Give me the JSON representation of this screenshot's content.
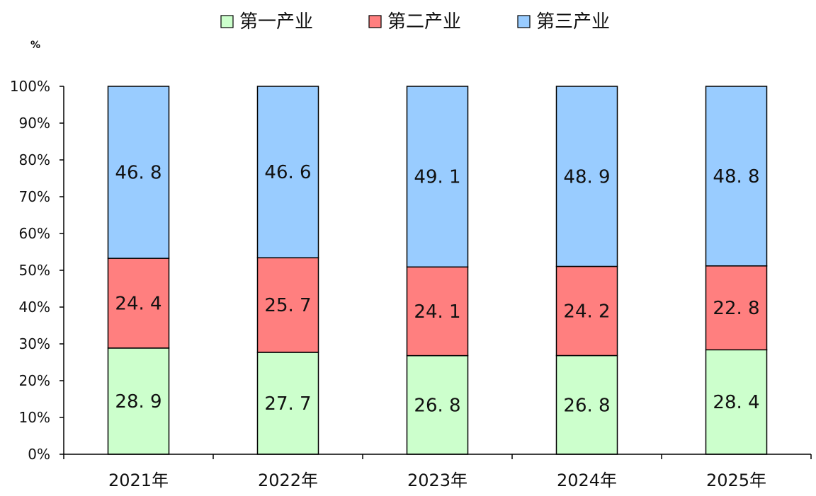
{
  "chart_data": {
    "type": "bar",
    "stacked": true,
    "percent_stacked": true,
    "unit": "%",
    "categories": [
      "2021年",
      "2022年",
      "2023年",
      "2024年",
      "2025年"
    ],
    "series": [
      {
        "name": "第一产业",
        "color": "#ccffcc",
        "values": [
          28.9,
          27.7,
          26.8,
          26.8,
          28.4
        ]
      },
      {
        "name": "第二产业",
        "color": "#ff7f7f",
        "values": [
          24.4,
          25.7,
          24.1,
          24.2,
          22.8
        ]
      },
      {
        "name": "第三产业",
        "color": "#99ccff",
        "values": [
          46.8,
          46.6,
          49.1,
          48.9,
          48.8
        ]
      }
    ],
    "y_ticks": [
      "0%",
      "10%",
      "20%",
      "30%",
      "40%",
      "50%",
      "60%",
      "70%",
      "80%",
      "90%",
      "100%"
    ],
    "ylim": [
      0,
      100
    ],
    "grid": false,
    "legend_position": "top-center"
  }
}
